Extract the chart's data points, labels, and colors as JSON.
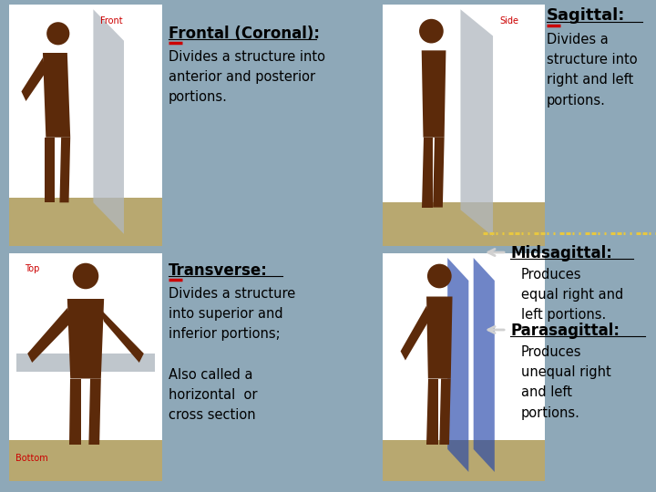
{
  "bg_color": "#8ea8b8",
  "title_frontal": "Frontal (Coronal):",
  "text_frontal": "Divides a structure into\nanterior and posterior\nportions.",
  "title_sagittal": "Sagittal:",
  "text_sagittal": "Divides a\nstructure into\nright and left\nportions.",
  "title_transverse": "Transverse:",
  "text_transverse": "Divides a structure\ninto superior and\ninferior portions;\n\nAlso called a\nhorizontal  or\ncross section",
  "title_midsagittal": "Midsagittal:",
  "text_midsagittal": "Produces\nequal right and\nleft portions.",
  "title_parasagittal": "Parasagittal:",
  "text_parasagittal": "Produces\nunequal right\nand left\nportions.",
  "label_front": "Front",
  "label_side": "Side",
  "label_top": "Top",
  "label_bottom": "Bottom",
  "red_color": "#cc0000",
  "text_color": "#000000",
  "yellow_dash_color": "#e8c840",
  "arrow_color": "#d0d0d0",
  "body_color": "#5c2a0a",
  "sandy_color": "#b8a870",
  "plane_gray": "#b0b8c0",
  "plane_blue": "#2244aa",
  "white": "#ffffff"
}
